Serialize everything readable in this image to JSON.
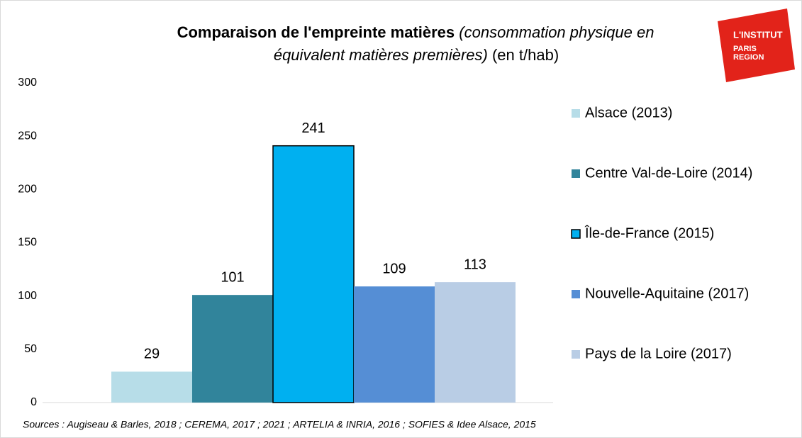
{
  "chart_data": {
    "type": "bar",
    "title": [
      "Comparaison de l'empreinte matières",
      "(consommation physique en",
      "équivalent matières premières)",
      "(en t/hab)"
    ],
    "logo": [
      "L'INSTITUT",
      "PARIS",
      "REGION"
    ],
    "source": "Sources : Augiseau & Barles, 2018 ; CEREMA, 2017 ; 2021 ; ARTELIA & INRIA, 2016 ; SOFIES & Idee Alsace, 2015",
    "series": [
      {
        "name": "Alsace (2013)",
        "color": "#b7dde8",
        "values": [
          29
        ]
      },
      {
        "name": "Centre Val-de-Loire (2014)",
        "color": "#31849b",
        "values": [
          101
        ]
      },
      {
        "name": "Île-de-France (2015)",
        "color": "#00b0f0",
        "values": [
          241
        ]
      },
      {
        "name": "Nouvelle-Aquitaine (2017)",
        "color": "#558ed5",
        "values": [
          109
        ]
      },
      {
        "name": "Pays de la Loire (2017)",
        "color": "#b9cde5",
        "values": [
          113
        ]
      }
    ],
    "ylim": [
      0,
      300
    ],
    "yticks": [
      0,
      50,
      100,
      150,
      200,
      250,
      300
    ],
    "grid": false,
    "legend": "right"
  }
}
